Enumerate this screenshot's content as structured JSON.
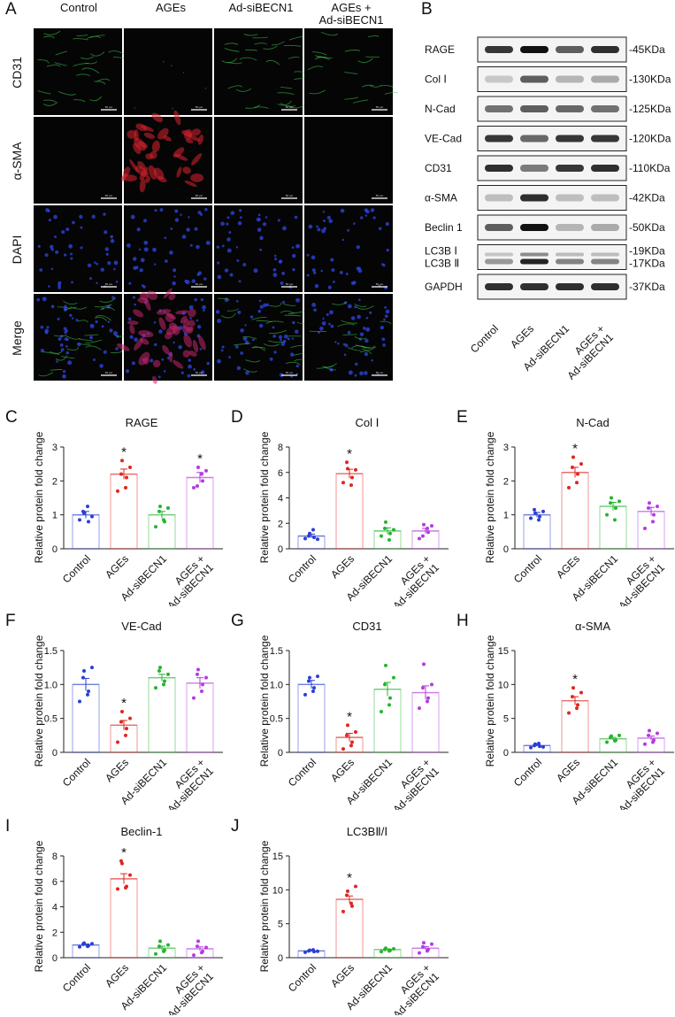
{
  "panel_a": {
    "letter": "A",
    "columns": [
      "Control",
      "AGEs",
      "Ad-siBECN1",
      "AGEs +\nAd-siBECN1"
    ],
    "rows": [
      "CD31",
      "α-SMA",
      "DAPI",
      "Merge"
    ],
    "scale_text": "50 μm",
    "channel_colors": {
      "CD31": "#39b54a",
      "α-SMA": "#d9232e",
      "DAPI": "#2b3bd6"
    }
  },
  "panel_b": {
    "letter": "B",
    "blots": [
      {
        "name": "RAGE",
        "size": "-45KDa"
      },
      {
        "name": "Col Ⅰ",
        "size": "-130KDa"
      },
      {
        "name": "N-Cad",
        "size": "-125KDa"
      },
      {
        "name": "VE-Cad",
        "size": "-120KDa"
      },
      {
        "name": "CD31",
        "size": "-110KDa"
      },
      {
        "name": "α-SMA",
        "size": "-42KDa"
      },
      {
        "name": "Beclin 1",
        "size": "-50KDa"
      },
      {
        "name": "LC3B Ⅰ\nLC3B Ⅱ",
        "size": "-19KDa\n-17KDa"
      },
      {
        "name": "GAPDH",
        "size": "-37KDa"
      }
    ],
    "lanes": [
      "Control",
      "AGEs",
      "Ad-siBECN1",
      "AGEs +\nAd-siBECN1"
    ]
  },
  "group_colors": [
    "#2b3fd4",
    "#e0261f",
    "#25b52f",
    "#b43be0"
  ],
  "chart_data": [
    {
      "letter": "C",
      "type": "bar",
      "title": "RAGE",
      "ylabel": "Relative protein fold change",
      "categories": [
        "Control",
        "AGEs",
        "Ad-siBECN1",
        "AGEs +\nAd-siBECN1"
      ],
      "values": [
        1.0,
        2.2,
        1.0,
        2.1
      ],
      "errors": [
        0.1,
        0.15,
        0.1,
        0.15
      ],
      "ylim": [
        0,
        3
      ],
      "yticks": [
        "0",
        "1",
        "2",
        "3"
      ],
      "significant": [
        false,
        true,
        false,
        true
      ],
      "points": [
        [
          0.85,
          1.05,
          0.8,
          1.1,
          1.25,
          0.95
        ],
        [
          1.7,
          2.6,
          2.1,
          2.2,
          1.8,
          2.4
        ],
        [
          0.65,
          1.25,
          0.8,
          1.1,
          0.85,
          1.2
        ],
        [
          1.8,
          2.4,
          2.0,
          1.85,
          2.2,
          2.3
        ]
      ]
    },
    {
      "letter": "D",
      "type": "bar",
      "title": "Col Ⅰ",
      "ylabel": "Relative protein fold change",
      "categories": [
        "Control",
        "AGEs",
        "Ad-siBECN1",
        "AGEs +\nAd-siBECN1"
      ],
      "values": [
        1.0,
        5.9,
        1.4,
        1.4
      ],
      "errors": [
        0.15,
        0.35,
        0.25,
        0.2
      ],
      "ylim": [
        0,
        8
      ],
      "yticks": [
        "0",
        "2",
        "4",
        "6",
        "8"
      ],
      "significant": [
        false,
        true,
        false,
        false
      ],
      "points": [
        [
          0.8,
          1.2,
          0.9,
          1.0,
          1.5,
          0.75
        ],
        [
          5.2,
          6.3,
          5.6,
          6.8,
          5.0,
          6.2
        ],
        [
          1.0,
          2.1,
          1.2,
          1.6,
          0.7,
          1.5
        ],
        [
          0.8,
          1.9,
          1.3,
          1.0,
          1.6,
          1.8
        ]
      ]
    },
    {
      "letter": "E",
      "type": "bar",
      "title": "N-Cad",
      "ylabel": "Relative protein fold change",
      "categories": [
        "Control",
        "AGEs",
        "Ad-siBECN1",
        "AGEs +\nAd-siBECN1"
      ],
      "values": [
        1.0,
        2.25,
        1.25,
        1.1
      ],
      "errors": [
        0.07,
        0.15,
        0.12,
        0.12
      ],
      "ylim": [
        0,
        3
      ],
      "yticks": [
        "0",
        "1",
        "2",
        "3"
      ],
      "significant": [
        false,
        true,
        false,
        false
      ],
      "points": [
        [
          0.9,
          1.05,
          0.95,
          1.15,
          0.85,
          1.1
        ],
        [
          1.8,
          2.7,
          2.2,
          2.4,
          1.95,
          2.5
        ],
        [
          1.0,
          1.5,
          1.2,
          1.35,
          0.85,
          1.4
        ],
        [
          0.6,
          1.35,
          1.0,
          1.2,
          0.8,
          1.25
        ]
      ]
    },
    {
      "letter": "F",
      "type": "bar",
      "title": "VE-Cad",
      "ylabel": "Relative protein fold change",
      "categories": [
        "Control",
        "AGEs",
        "Ad-siBECN1",
        "AGEs +\nAd-siBECN1"
      ],
      "values": [
        1.0,
        0.4,
        1.1,
        1.02
      ],
      "errors": [
        0.09,
        0.07,
        0.05,
        0.08
      ],
      "ylim": [
        0,
        1.5
      ],
      "yticks": [
        "0",
        "0.5",
        "1.0",
        "1.5"
      ],
      "significant": [
        false,
        true,
        false,
        false
      ],
      "points": [
        [
          0.75,
          1.2,
          0.9,
          1.1,
          0.85,
          1.25
        ],
        [
          0.15,
          0.6,
          0.35,
          0.45,
          0.25,
          0.5
        ],
        [
          0.95,
          1.25,
          1.05,
          1.2,
          1.0,
          1.15
        ],
        [
          0.8,
          1.22,
          1.0,
          1.15,
          0.9,
          1.1
        ]
      ]
    },
    {
      "letter": "G",
      "type": "bar",
      "title": "CD31",
      "ylabel": "Relative protein fold change",
      "categories": [
        "Control",
        "AGEs",
        "Ad-siBECN1",
        "AGEs +\nAd-siBECN1"
      ],
      "values": [
        1.0,
        0.22,
        0.93,
        0.88
      ],
      "errors": [
        0.06,
        0.06,
        0.1,
        0.1
      ],
      "ylim": [
        0,
        1.5
      ],
      "yticks": [
        "0",
        "0.5",
        "1.0",
        "1.5"
      ],
      "significant": [
        false,
        true,
        false,
        false
      ],
      "points": [
        [
          0.85,
          1.1,
          0.95,
          1.05,
          0.9,
          1.12
        ],
        [
          0.05,
          0.4,
          0.15,
          0.25,
          0.1,
          0.3
        ],
        [
          0.6,
          1.28,
          0.8,
          1.0,
          0.7,
          1.1
        ],
        [
          0.65,
          1.3,
          0.8,
          0.95,
          0.75,
          1.0
        ]
      ]
    },
    {
      "letter": "H",
      "type": "bar",
      "title": "α-SMA",
      "ylabel": "Relative protein fold change",
      "categories": [
        "Control",
        "AGEs",
        "Ad-siBECN1",
        "AGEs +\nAd-siBECN1"
      ],
      "values": [
        1.0,
        7.6,
        2.0,
        2.1
      ],
      "errors": [
        0.1,
        0.6,
        0.2,
        0.3
      ],
      "ylim": [
        0,
        15
      ],
      "yticks": [
        "0",
        "5",
        "10",
        "15"
      ],
      "significant": [
        false,
        true,
        false,
        false
      ],
      "points": [
        [
          0.7,
          1.2,
          0.9,
          1.0,
          1.3,
          0.8
        ],
        [
          5.8,
          9.5,
          7.0,
          8.2,
          6.5,
          8.8
        ],
        [
          1.5,
          2.4,
          1.8,
          2.2,
          1.7,
          2.5
        ],
        [
          1.2,
          3.2,
          1.8,
          2.5,
          1.5,
          2.8
        ]
      ]
    },
    {
      "letter": "I",
      "type": "bar",
      "title": "Beclin-1",
      "ylabel": "Relative protein fold change",
      "categories": [
        "Control",
        "AGEs",
        "Ad-siBECN1",
        "AGEs +\nAd-siBECN1"
      ],
      "values": [
        1.0,
        6.2,
        0.75,
        0.7
      ],
      "errors": [
        0.08,
        0.4,
        0.15,
        0.15
      ],
      "ylim": [
        0,
        8
      ],
      "yticks": [
        "0",
        "2",
        "4",
        "6",
        "8"
      ],
      "significant": [
        false,
        true,
        false,
        false
      ],
      "points": [
        [
          0.85,
          1.15,
          0.95,
          1.05,
          0.9,
          1.1
        ],
        [
          5.4,
          7.4,
          5.6,
          7.6,
          5.5,
          6.5
        ],
        [
          0.3,
          1.3,
          0.6,
          0.9,
          0.5,
          1.0
        ],
        [
          0.2,
          1.3,
          0.5,
          0.9,
          0.4,
          0.8
        ]
      ]
    },
    {
      "letter": "J",
      "type": "bar",
      "title": "LC3BⅡ/Ⅰ",
      "ylabel": "Relative protein fold change",
      "categories": [
        "Control",
        "AGEs",
        "Ad-siBECN1",
        "AGEs +\nAd-siBECN1"
      ],
      "values": [
        1.0,
        8.6,
        1.2,
        1.4
      ],
      "errors": [
        0.08,
        0.5,
        0.1,
        0.25
      ],
      "ylim": [
        0,
        15
      ],
      "yticks": [
        "0",
        "5",
        "10",
        "15"
      ],
      "significant": [
        false,
        true,
        false,
        false
      ],
      "points": [
        [
          0.8,
          1.1,
          0.9,
          1.0,
          1.15,
          0.95
        ],
        [
          6.8,
          9.8,
          7.6,
          9.2,
          8.0,
          10.5
        ],
        [
          0.9,
          1.4,
          1.1,
          1.2,
          1.0,
          1.3
        ],
        [
          0.7,
          2.2,
          1.2,
          1.6,
          1.0,
          2.0
        ]
      ]
    }
  ]
}
